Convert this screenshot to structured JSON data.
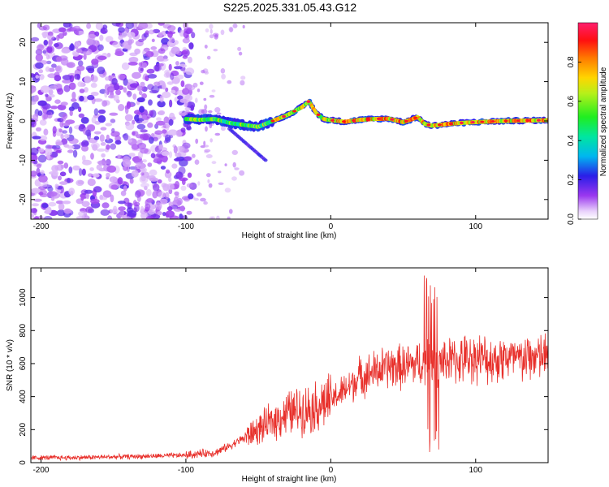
{
  "title": "S225.2025.331.05.43.G12",
  "chart_data": [
    {
      "type": "heatmap",
      "name": "spectrogram",
      "xlabel": "Height of straight line (km)",
      "ylabel": "Frequency (Hz)",
      "xlim": [
        -207,
        150
      ],
      "ylim": [
        -25,
        25
      ],
      "xticks": [
        -200,
        -100,
        0,
        100
      ],
      "yticks": [
        -20,
        -10,
        0,
        10,
        20
      ],
      "noise_region_x": [
        -207,
        -95
      ],
      "signal_track": {
        "x": [
          -100,
          -90,
          -80,
          -70,
          -60,
          -50,
          -40,
          -30,
          -20,
          -15,
          -10,
          -5,
          0,
          10,
          20,
          30,
          40,
          50,
          55,
          60,
          65,
          70,
          80,
          90,
          100,
          120,
          150
        ],
        "y": [
          0.5,
          0.3,
          0.5,
          -0.5,
          -1.0,
          -1.5,
          0,
          1.5,
          3.5,
          5.0,
          2.0,
          0.5,
          0.2,
          -0.2,
          0.3,
          0.5,
          0.6,
          -0.3,
          0.3,
          1.0,
          -0.8,
          -1.2,
          -0.8,
          -0.5,
          -0.3,
          0,
          0.2
        ]
      },
      "colorbar": {
        "label": "Normalized spectral amplitude",
        "range": [
          0.0,
          1.0
        ],
        "ticks": [
          0.0,
          0.2,
          0.4,
          0.6,
          0.8
        ]
      }
    },
    {
      "type": "line",
      "name": "snr",
      "xlabel": "Height of straight line (km)",
      "ylabel": "SNR (10 * v/v)",
      "xlim": [
        -207,
        150
      ],
      "ylim": [
        0,
        1180
      ],
      "xticks": [
        -200,
        -100,
        0,
        100
      ],
      "yticks": [
        0,
        200,
        400,
        600,
        800,
        1000
      ],
      "series": [
        {
          "name": "SNR",
          "color": "#e8302b",
          "x": [
            -207,
            -180,
            -150,
            -120,
            -100,
            -90,
            -80,
            -70,
            -60,
            -50,
            -40,
            -30,
            -20,
            -10,
            0,
            10,
            20,
            30,
            40,
            50,
            60,
            65,
            68,
            70,
            72,
            75,
            80,
            90,
            100,
            110,
            120,
            130,
            140,
            150
          ],
          "values": [
            30,
            30,
            35,
            40,
            45,
            55,
            60,
            100,
            150,
            200,
            250,
            300,
            320,
            340,
            380,
            440,
            520,
            550,
            580,
            580,
            600,
            610,
            650,
            580,
            600,
            610,
            620,
            620,
            640,
            620,
            640,
            620,
            640,
            640
          ]
        }
      ]
    }
  ]
}
